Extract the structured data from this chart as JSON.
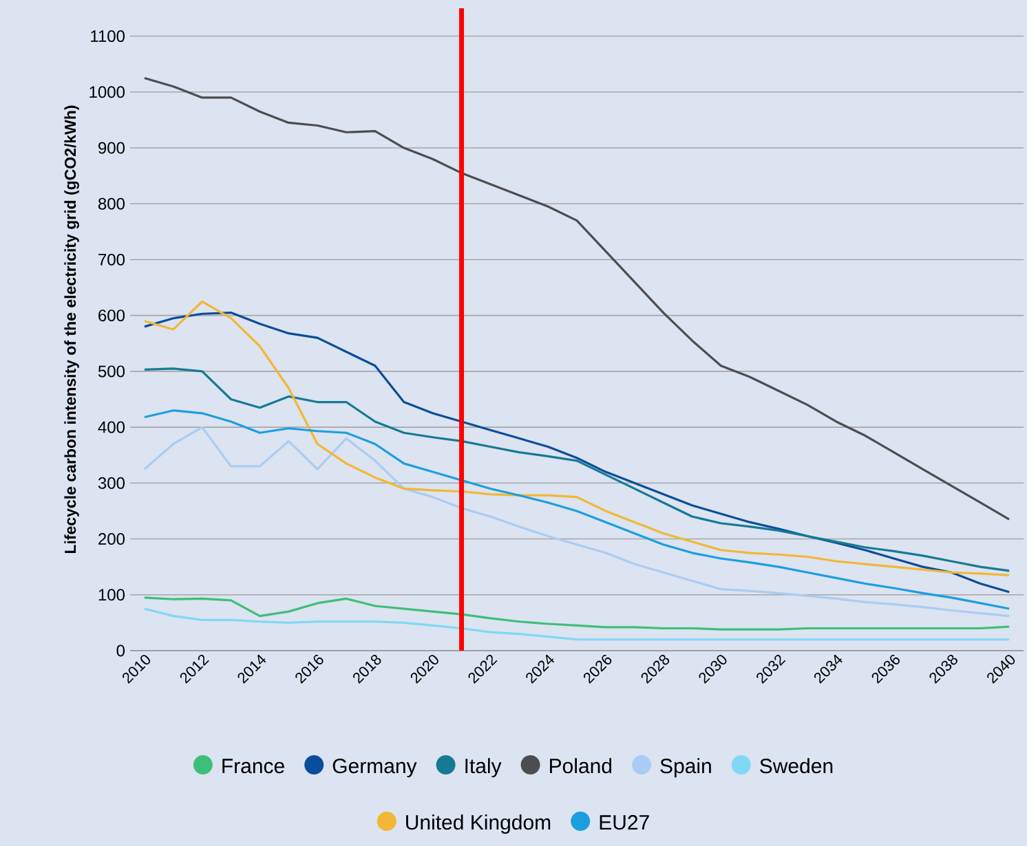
{
  "chart_data": {
    "type": "line",
    "ylabel": "Lifecycle carbon intensity of the electricity grid (gCO2/kWh)",
    "x": [
      2010,
      2011,
      2012,
      2013,
      2014,
      2015,
      2016,
      2017,
      2018,
      2019,
      2020,
      2021,
      2022,
      2023,
      2024,
      2025,
      2026,
      2027,
      2028,
      2029,
      2030,
      2031,
      2032,
      2033,
      2034,
      2035,
      2036,
      2037,
      2038,
      2039,
      2040
    ],
    "series": [
      {
        "name": "France",
        "color": "#3dbf7a",
        "values": [
          95,
          92,
          93,
          90,
          62,
          70,
          85,
          93,
          80,
          75,
          70,
          65,
          58,
          52,
          48,
          45,
          42,
          42,
          40,
          40,
          38,
          38,
          38,
          40,
          40,
          40,
          40,
          40,
          40,
          40,
          43
        ]
      },
      {
        "name": "Germany",
        "color": "#0a4d9a",
        "values": [
          580,
          595,
          603,
          605,
          585,
          568,
          560,
          535,
          510,
          445,
          425,
          410,
          395,
          380,
          365,
          345,
          320,
          300,
          280,
          260,
          245,
          230,
          218,
          205,
          193,
          180,
          165,
          150,
          140,
          120,
          105
        ]
      },
      {
        "name": "Italy",
        "color": "#157a94",
        "values": [
          503,
          505,
          500,
          450,
          435,
          455,
          445,
          445,
          410,
          390,
          382,
          375,
          365,
          355,
          348,
          340,
          315,
          290,
          265,
          240,
          228,
          222,
          215,
          205,
          195,
          185,
          178,
          170,
          160,
          150,
          143
        ]
      },
      {
        "name": "Poland",
        "color": "#4d4d4f",
        "values": [
          1025,
          1010,
          990,
          990,
          965,
          945,
          940,
          928,
          930,
          900,
          880,
          855,
          835,
          815,
          795,
          770,
          715,
          660,
          605,
          555,
          510,
          490,
          465,
          440,
          410,
          385,
          355,
          325,
          295,
          265,
          235
        ]
      },
      {
        "name": "Spain",
        "color": "#a9cdf2",
        "values": [
          325,
          370,
          400,
          330,
          330,
          375,
          325,
          380,
          340,
          290,
          275,
          255,
          240,
          222,
          205,
          190,
          175,
          155,
          140,
          125,
          110,
          107,
          103,
          98,
          93,
          87,
          83,
          78,
          72,
          67,
          62
        ]
      },
      {
        "name": "Sweden",
        "color": "#7fd8f5",
        "values": [
          75,
          62,
          55,
          55,
          52,
          50,
          52,
          52,
          52,
          50,
          45,
          40,
          33,
          30,
          25,
          20,
          20,
          20,
          20,
          20,
          20,
          20,
          20,
          20,
          20,
          20,
          20,
          20,
          20,
          20,
          20
        ]
      },
      {
        "name": "United Kingdom",
        "color": "#f2b733",
        "values": [
          590,
          575,
          625,
          595,
          545,
          470,
          370,
          335,
          310,
          290,
          287,
          285,
          280,
          278,
          278,
          275,
          250,
          230,
          210,
          195,
          180,
          175,
          172,
          168,
          160,
          155,
          150,
          145,
          140,
          138,
          135
        ]
      },
      {
        "name": "EU27",
        "color": "#1a9ee0",
        "values": [
          418,
          430,
          425,
          410,
          390,
          398,
          393,
          390,
          370,
          335,
          320,
          305,
          290,
          278,
          265,
          250,
          230,
          210,
          190,
          175,
          165,
          158,
          150,
          140,
          130,
          120,
          112,
          103,
          95,
          85,
          75
        ]
      }
    ],
    "xlim": [
      2009.5,
      2040.5
    ],
    "ylim": [
      0,
      1150
    ],
    "xticks": [
      2010,
      2012,
      2014,
      2016,
      2018,
      2020,
      2022,
      2024,
      2026,
      2028,
      2030,
      2032,
      2034,
      2036,
      2038,
      2040
    ],
    "yticks": [
      0,
      100,
      200,
      300,
      400,
      500,
      600,
      700,
      800,
      900,
      1000,
      1100
    ],
    "ref_lines": [
      {
        "axis": "x",
        "value": 2021,
        "color": "#ff0000"
      }
    ],
    "grid": "y",
    "legend": "bottom",
    "line_style": "solid"
  }
}
